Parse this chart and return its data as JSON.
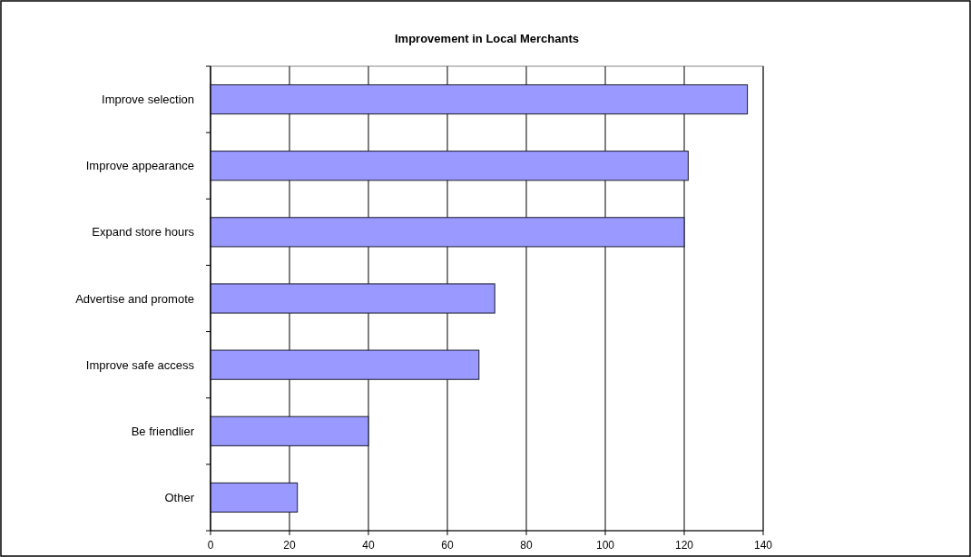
{
  "chart_data": {
    "type": "bar",
    "title": "Improvement in Local Merchants",
    "orientation": "horizontal",
    "categories": [
      "Improve selection",
      "Improve appearance",
      "Expand store hours",
      "Advertise and promote",
      "Improve safe access",
      "Be friendlier",
      "Other"
    ],
    "values": [
      136,
      121,
      120,
      72,
      68,
      40,
      22
    ],
    "color": "#9999ff",
    "xlim": [
      0,
      140
    ],
    "xticks": [
      0,
      20,
      40,
      60,
      80,
      100,
      120,
      140
    ],
    "grid": "x"
  }
}
